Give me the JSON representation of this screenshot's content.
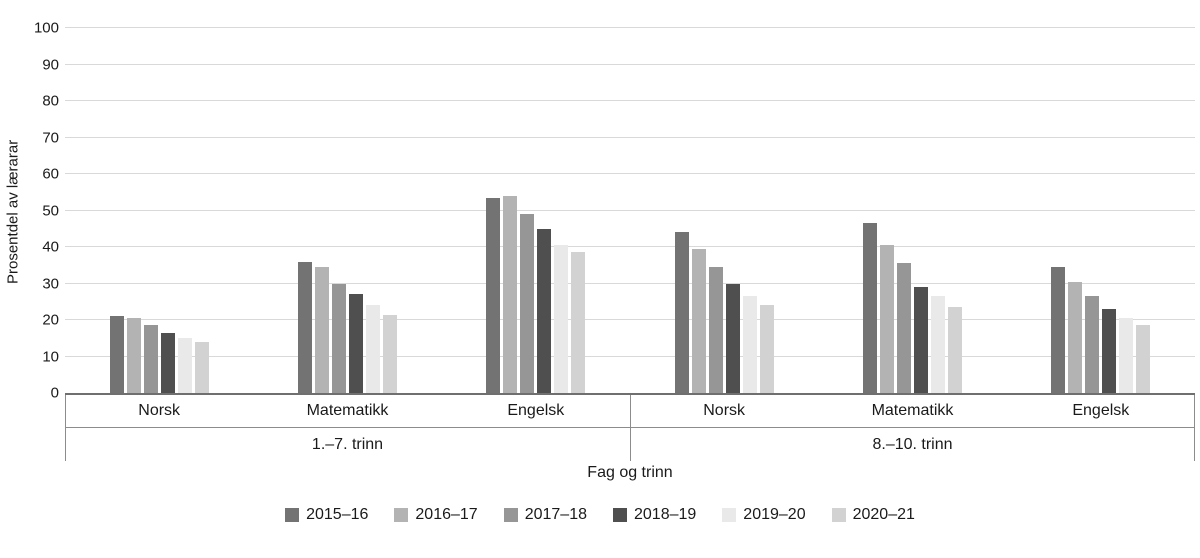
{
  "chart_data": {
    "type": "bar",
    "title": "",
    "ylabel": "Prosentdel av lærarar",
    "xlabel": "Fag og trinn",
    "ylim": [
      0,
      100
    ],
    "yticks": [
      0,
      10,
      20,
      30,
      40,
      50,
      60,
      70,
      80,
      90,
      100
    ],
    "grid": true,
    "legend_position": "bottom",
    "groups": [
      {
        "label": "1.–7. trinn",
        "categories": [
          "Norsk",
          "Matematikk",
          "Engelsk"
        ]
      },
      {
        "label": "8.–10. trinn",
        "categories": [
          "Norsk",
          "Matematikk",
          "Engelsk"
        ]
      }
    ],
    "category_order": [
      "1.–7. trinn Norsk",
      "1.–7. trinn Matematikk",
      "1.–7. trinn Engelsk",
      "8.–10. trinn Norsk",
      "8.–10. trinn Matematikk",
      "8.–10. trinn Engelsk"
    ],
    "series": [
      {
        "name": "2015–16",
        "color": "#737373",
        "values": [
          21,
          36,
          53.5,
          44,
          46.5,
          34.5
        ]
      },
      {
        "name": "2016–17",
        "color": "#b3b3b3",
        "values": [
          20.5,
          34.5,
          54,
          39.5,
          40.5,
          30.5
        ]
      },
      {
        "name": "2017–18",
        "color": "#969696",
        "values": [
          18.5,
          30,
          49,
          34.5,
          35.5,
          26.5
        ]
      },
      {
        "name": "2018–19",
        "color": "#4f4f4f",
        "values": [
          16.5,
          27,
          45,
          30,
          29,
          23
        ]
      },
      {
        "name": "2019–20",
        "color": "#e9e9e9",
        "values": [
          15,
          24,
          40.5,
          26.5,
          26.5,
          20.5
        ]
      },
      {
        "name": "2020–21",
        "color": "#d2d2d2",
        "values": [
          14,
          21.5,
          38.5,
          24,
          23.5,
          18.5
        ]
      }
    ]
  }
}
